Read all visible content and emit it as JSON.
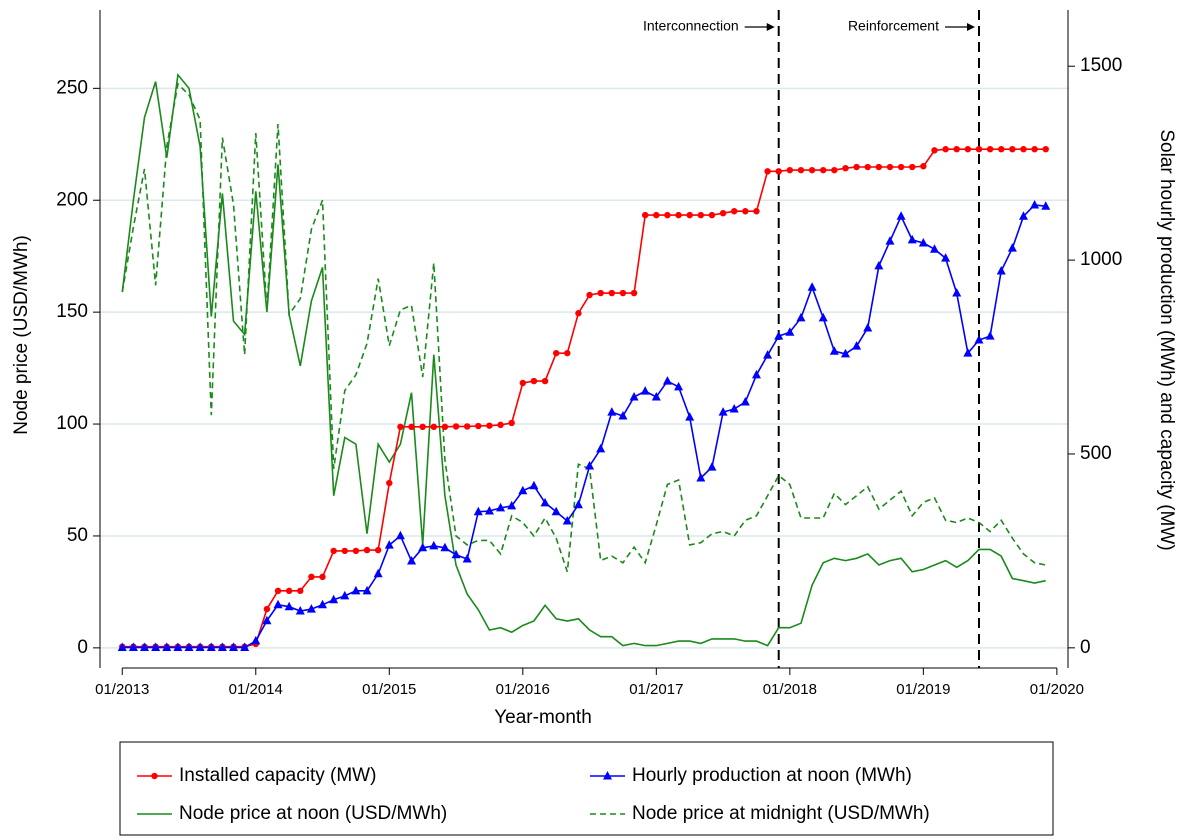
{
  "chart_data": {
    "type": "line",
    "xlabel": "Year-month",
    "ylabel": "Node price (USD/MWh)",
    "y2label": "Solar hourly production (MWh) and capacity (MW)",
    "x": [
      "2013-01",
      "2013-02",
      "2013-03",
      "2013-04",
      "2013-05",
      "2013-06",
      "2013-07",
      "2013-08",
      "2013-09",
      "2013-10",
      "2013-11",
      "2013-12",
      "2014-01",
      "2014-02",
      "2014-03",
      "2014-04",
      "2014-05",
      "2014-06",
      "2014-07",
      "2014-08",
      "2014-09",
      "2014-10",
      "2014-11",
      "2014-12",
      "2015-01",
      "2015-02",
      "2015-03",
      "2015-04",
      "2015-05",
      "2015-06",
      "2015-07",
      "2015-08",
      "2015-09",
      "2015-10",
      "2015-11",
      "2015-12",
      "2016-01",
      "2016-02",
      "2016-03",
      "2016-04",
      "2016-05",
      "2016-06",
      "2016-07",
      "2016-08",
      "2016-09",
      "2016-10",
      "2016-11",
      "2016-12",
      "2017-01",
      "2017-02",
      "2017-03",
      "2017-04",
      "2017-05",
      "2017-06",
      "2017-07",
      "2017-08",
      "2017-09",
      "2017-10",
      "2017-11",
      "2017-12",
      "2018-01",
      "2018-02",
      "2018-03",
      "2018-04",
      "2018-05",
      "2018-06",
      "2018-07",
      "2018-08",
      "2018-09",
      "2018-10",
      "2018-11",
      "2018-12",
      "2019-01",
      "2019-02",
      "2019-03",
      "2019-04",
      "2019-05",
      "2019-06",
      "2019-07",
      "2019-08",
      "2019-09",
      "2019-10",
      "2019-11",
      "2019-12"
    ],
    "series": [
      {
        "name": "Installed capacity (MW)",
        "color": "#ff0000",
        "axis": "y2",
        "marker": "circle",
        "dash": false,
        "values": [
          3,
          3,
          3,
          3,
          3,
          3,
          3,
          3,
          3,
          3,
          3,
          3,
          10,
          100,
          147,
          147,
          147,
          183,
          183,
          250,
          250,
          250,
          252,
          252,
          425,
          570,
          570,
          570,
          570,
          570,
          571,
          571,
          572,
          573,
          575,
          580,
          683,
          688,
          688,
          760,
          760,
          863,
          910,
          915,
          915,
          915,
          915,
          1116,
          1116,
          1116,
          1116,
          1116,
          1116,
          1116,
          1121,
          1126,
          1126,
          1126,
          1229,
          1229,
          1232,
          1232,
          1232,
          1232,
          1232,
          1237,
          1240,
          1240,
          1240,
          1240,
          1240,
          1240,
          1242,
          1283,
          1286,
          1286,
          1286,
          1286,
          1286,
          1286,
          1286,
          1286,
          1286,
          1286
        ]
      },
      {
        "name": "Hourly production at noon (MWh)",
        "color": "#0000ff",
        "axis": "y2",
        "marker": "triangle",
        "dash": false,
        "values": [
          1,
          1,
          1,
          1,
          1,
          1,
          1,
          1,
          1,
          1,
          1,
          1,
          18,
          70,
          111,
          106,
          95,
          100,
          111,
          124,
          134,
          147,
          147,
          191,
          265,
          289,
          224,
          258,
          263,
          258,
          240,
          229,
          351,
          353,
          361,
          366,
          405,
          418,
          374,
          351,
          327,
          369,
          469,
          513,
          608,
          598,
          647,
          662,
          647,
          688,
          673,
          595,
          438,
          466,
          608,
          616,
          634,
          704,
          755,
          804,
          814,
          851,
          930,
          851,
          765,
          758,
          778,
          825,
          985,
          1049,
          1113,
          1052,
          1044,
          1028,
          1005,
          915,
          760,
          794,
          804,
          972,
          1031,
          1113,
          1142,
          1139
        ]
      },
      {
        "name": "Node price at noon (USD/MWh)",
        "color": "#1a8a1a",
        "axis": "y",
        "marker": null,
        "dash": false,
        "values": [
          159,
          200,
          237,
          253,
          219,
          256,
          250,
          224,
          148,
          203,
          146,
          140,
          204,
          150,
          216,
          149,
          126,
          155,
          170,
          68,
          94,
          91,
          51,
          91,
          83,
          91,
          114,
          46,
          131,
          68,
          37,
          24,
          17,
          8,
          9,
          7,
          10,
          12,
          19,
          13,
          12,
          13,
          8,
          5,
          5,
          1,
          2,
          1,
          1,
          2,
          3,
          3,
          2,
          4,
          4,
          4,
          3,
          3,
          1,
          9,
          9,
          11,
          28,
          38,
          40,
          39,
          40,
          42,
          37,
          39,
          40,
          34,
          35,
          37,
          39,
          36,
          39,
          44,
          44,
          41,
          31,
          30,
          29,
          30
        ]
      },
      {
        "name": "Node price at midnight (USD/MWh)",
        "color": "#1a8a1a",
        "axis": "y",
        "marker": null,
        "dash": true,
        "values": [
          159,
          188,
          214,
          162,
          224,
          252,
          247,
          236,
          104,
          228,
          198,
          131,
          230,
          151,
          234,
          149,
          156,
          187,
          200,
          80,
          115,
          122,
          136,
          165,
          135,
          151,
          153,
          121,
          172,
          84,
          50,
          46,
          48,
          48,
          42,
          59,
          56,
          50,
          58,
          49,
          34,
          82,
          80,
          39,
          41,
          38,
          45,
          38,
          55,
          73,
          75,
          46,
          47,
          51,
          52,
          50,
          57,
          59,
          68,
          77,
          73,
          58,
          58,
          58,
          69,
          64,
          68,
          72,
          62,
          66,
          70,
          59,
          65,
          67,
          57,
          56,
          58,
          56,
          52,
          57,
          49,
          42,
          38,
          37
        ]
      }
    ],
    "xlim": [
      "2012-11",
      "2020-02"
    ],
    "xticks": [
      {
        "value": "2013-01",
        "label": "01/2013"
      },
      {
        "value": "2014-01",
        "label": "01/2014"
      },
      {
        "value": "2015-01",
        "label": "01/2015"
      },
      {
        "value": "2016-01",
        "label": "01/2016"
      },
      {
        "value": "2017-01",
        "label": "01/2017"
      },
      {
        "value": "2018-01",
        "label": "01/2018"
      },
      {
        "value": "2019-01",
        "label": "01/2019"
      },
      {
        "value": "2020-01",
        "label": "01/2020"
      }
    ],
    "ylim": [
      -9,
      285
    ],
    "yticks": [
      0,
      50,
      100,
      150,
      200,
      250
    ],
    "y2lim": [
      -52,
      1645
    ],
    "y2ticks": [
      0,
      500,
      1000,
      1500
    ],
    "grid": true,
    "legend": "bottom",
    "vlines": [
      {
        "x": "2017-12",
        "label": "Interconnection"
      },
      {
        "x": "2019-06",
        "label": "Reinforcement"
      }
    ]
  }
}
